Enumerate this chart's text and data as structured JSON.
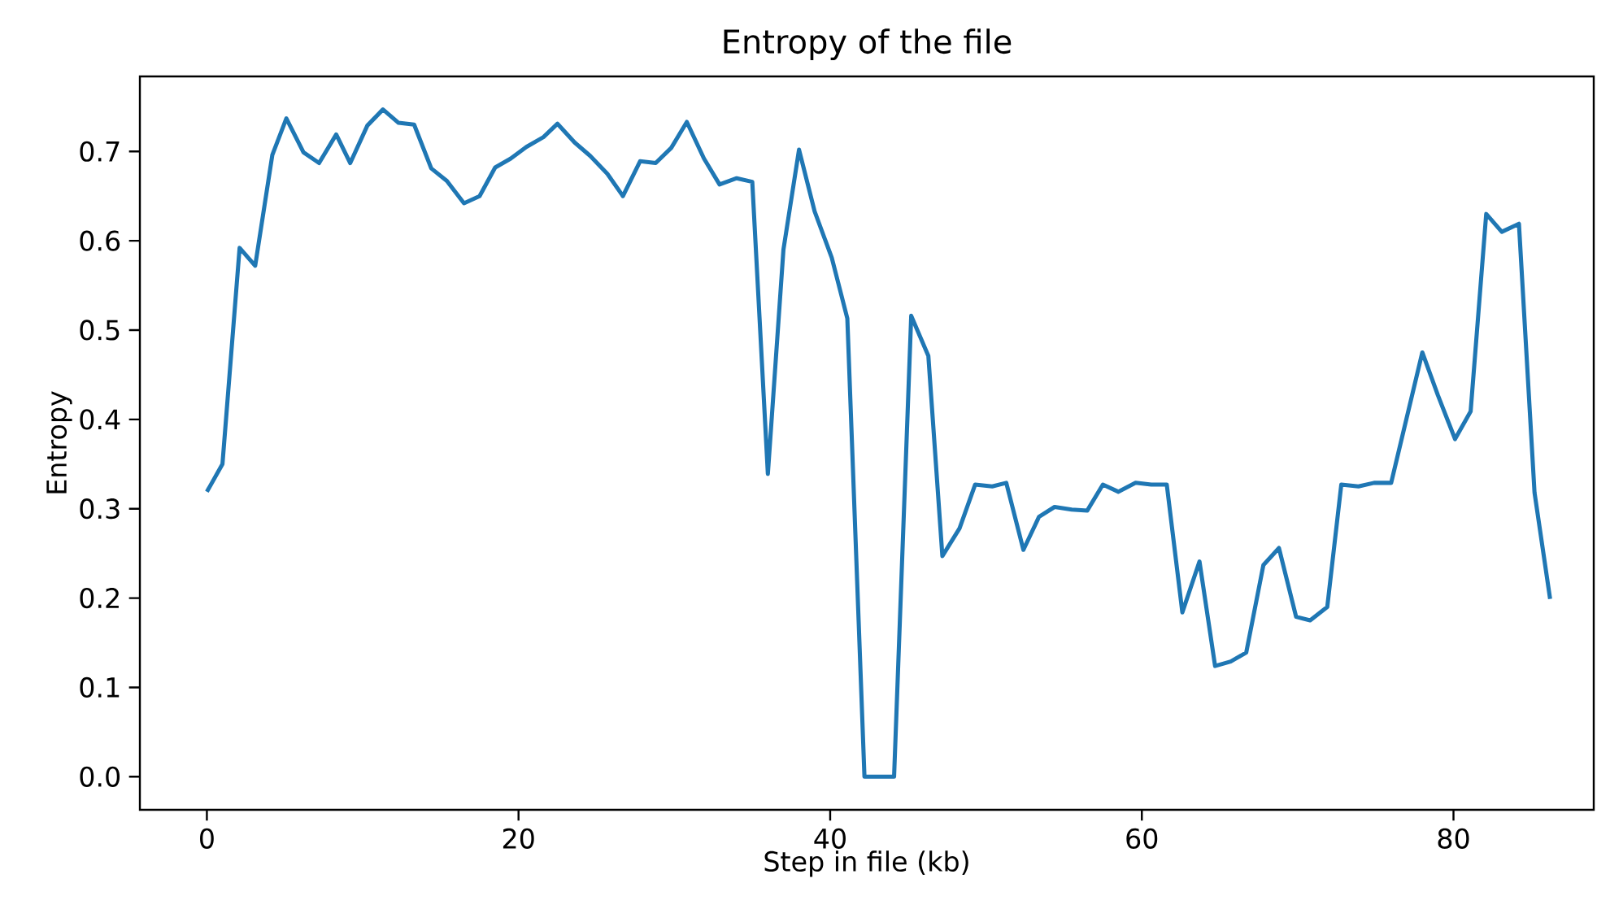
{
  "chart_data": {
    "type": "line",
    "title": "Entropy of the file",
    "xlabel": "Step in file (kb)",
    "ylabel": "Entropy",
    "xlim": [
      -4.3,
      89
    ],
    "ylim": [
      -0.037,
      0.784
    ],
    "xticks": [
      0,
      20,
      40,
      60,
      80
    ],
    "yticks": [
      {
        "value": 0,
        "label": "0.0"
      },
      {
        "value": 0.1,
        "label": "0.1"
      },
      {
        "value": 0.2,
        "label": "0.2"
      },
      {
        "value": 0.3,
        "label": "0.3"
      },
      {
        "value": 0.4,
        "label": "0.4"
      },
      {
        "value": 0.5,
        "label": "0.5"
      },
      {
        "value": 0.6,
        "label": "0.6"
      },
      {
        "value": 0.7,
        "label": "0.7"
      }
    ],
    "marker": "none",
    "line_style": "solid",
    "series": [
      {
        "color": "#1f77b4",
        "x": [
          0,
          1.0,
          2.1,
          3.1,
          4.2,
          5.1,
          6.2,
          7.2,
          8.3,
          9.2,
          10.3,
          11.3,
          12.3,
          13.3,
          14.4,
          15.4,
          16.5,
          17.5,
          18.5,
          19.5,
          20.5,
          21.6,
          22.5,
          23.6,
          24.6,
          25.7,
          26.7,
          27.8,
          28.8,
          29.8,
          30.8,
          31.9,
          32.9,
          34.0,
          35.0,
          36.0,
          37.0,
          38.0,
          39.0,
          40.1,
          41.1,
          42.2,
          43.1,
          44.1,
          45.2,
          46.3,
          47.2,
          48.3,
          49.3,
          50.4,
          51.3,
          52.4,
          53.4,
          54.4,
          55.5,
          56.5,
          57.5,
          58.5,
          59.6,
          60.6,
          61.6,
          62.6,
          63.7,
          64.7,
          65.7,
          66.7,
          67.8,
          68.8,
          69.9,
          70.8,
          71.9,
          72.8,
          73.9,
          74.9,
          76.0,
          77.0,
          78.0,
          79.0,
          80.1,
          81.1,
          82.1,
          83.1,
          84.2,
          85.2,
          86.2
        ],
        "values": [
          0.319,
          0.35,
          0.592,
          0.572,
          0.696,
          0.737,
          0.699,
          0.687,
          0.719,
          0.687,
          0.729,
          0.747,
          0.732,
          0.73,
          0.681,
          0.667,
          0.642,
          0.65,
          0.682,
          0.692,
          0.705,
          0.716,
          0.731,
          0.71,
          0.695,
          0.675,
          0.65,
          0.689,
          0.687,
          0.704,
          0.733,
          0.692,
          0.663,
          0.67,
          0.666,
          0.339,
          0.59,
          0.702,
          0.633,
          0.581,
          0.513,
          0,
          0,
          0,
          0.516,
          0.471,
          0.247,
          0.278,
          0.327,
          0.325,
          0.329,
          0.254,
          0.291,
          0.302,
          0.299,
          0.298,
          0.327,
          0.319,
          0.329,
          0.327,
          0.327,
          0.184,
          0.241,
          0.124,
          0.129,
          0.139,
          0.237,
          0.256,
          0.179,
          0.175,
          0.19,
          0.327,
          0.325,
          0.329,
          0.329,
          0.402,
          0.475,
          0.427,
          0.378,
          0.409,
          0.63,
          0.61,
          0.619,
          0.318,
          0.199
        ]
      }
    ]
  }
}
